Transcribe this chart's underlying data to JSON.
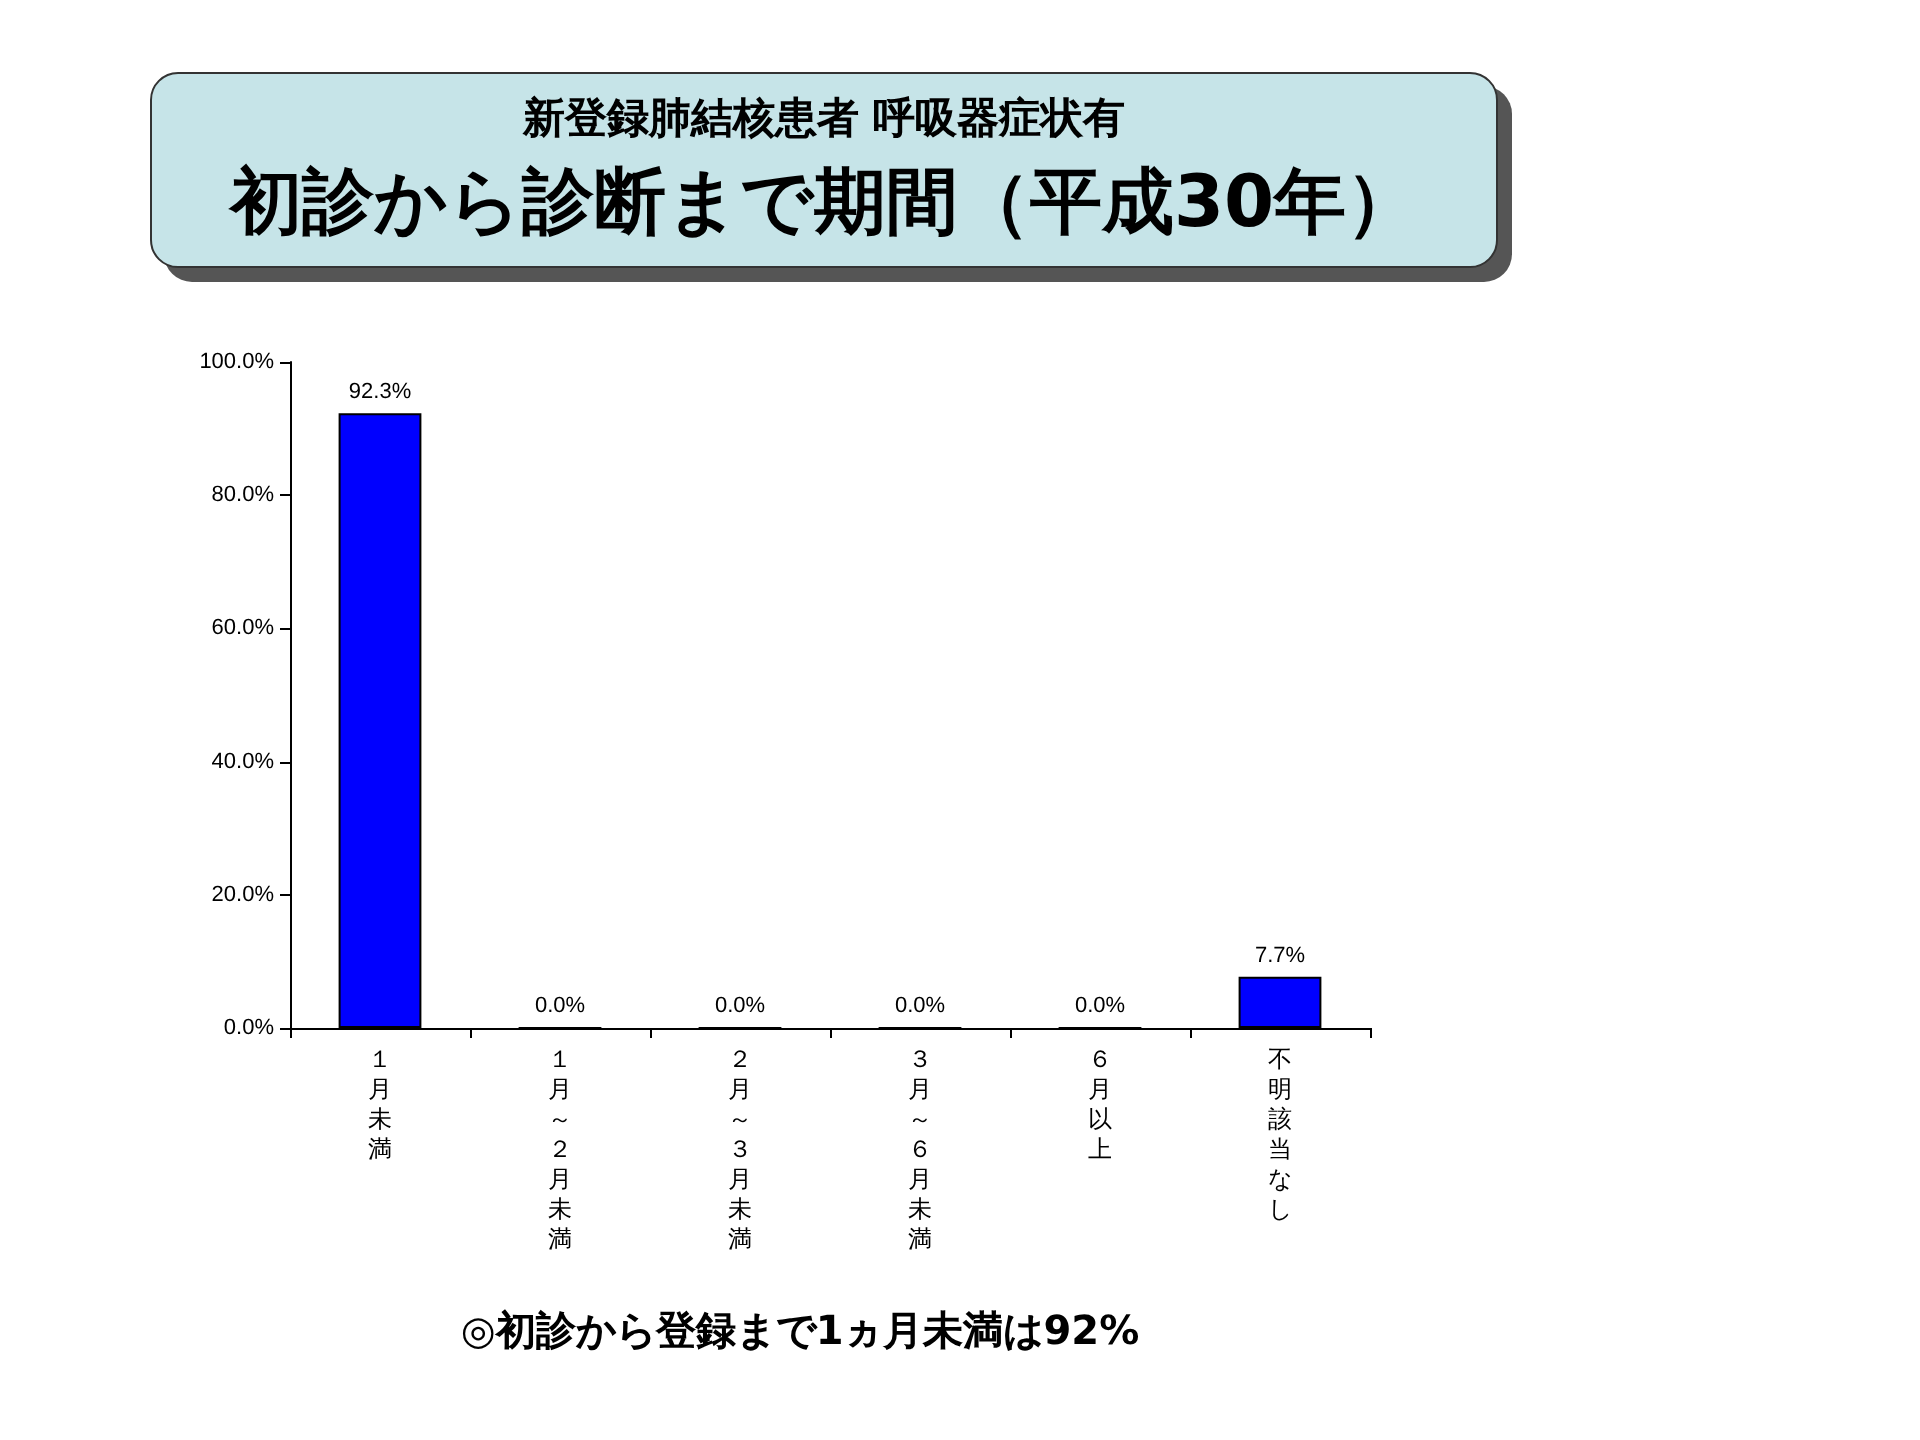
{
  "chart_data": {
    "type": "bar",
    "subtitle": "新登録肺結核患者  呼吸器症状有",
    "title": "初診から診断まで期間（平成30年）",
    "categories": [
      "１月未満",
      "１月～２月未満",
      "２月～３月未満",
      "３月～６月未満",
      "６月以上",
      "不明該当なし"
    ],
    "values": [
      92.3,
      0.0,
      0.0,
      0.0,
      0.0,
      7.7
    ],
    "color": "#0000ff",
    "value_labels": [
      "92.3%",
      "0.0%",
      "0.0%",
      "0.0%",
      "0.0%",
      "7.7%"
    ],
    "ylim": [
      0,
      100
    ],
    "yticks": [
      {
        "value": 0,
        "label": "0.0%"
      },
      {
        "value": 20,
        "label": "20.0%"
      },
      {
        "value": 40,
        "label": "40.0%"
      },
      {
        "value": 60,
        "label": "60.0%"
      },
      {
        "value": 80,
        "label": "80.0%"
      },
      {
        "value": 100,
        "label": "100.0%"
      }
    ],
    "grid": false,
    "annotations": [
      "◎初診から登録まで1ヵ月未満は92%"
    ]
  }
}
